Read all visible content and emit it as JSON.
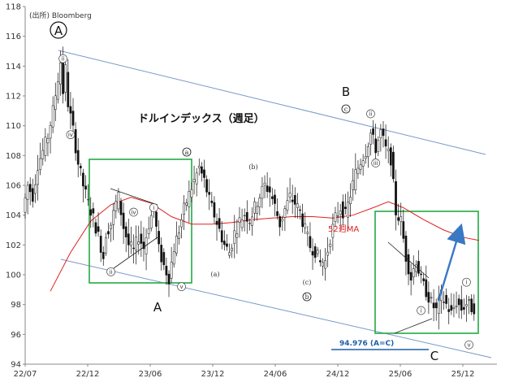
{
  "chart_data": {
    "type": "candlestick",
    "source": "(出所) Bloomberg",
    "title": "ドルインデックス（週足）",
    "ylim": [
      94,
      118
    ],
    "yticks": [
      94,
      96,
      98,
      100,
      102,
      104,
      106,
      108,
      110,
      112,
      114,
      116,
      118
    ],
    "xlim": [
      "2022-07",
      "2025-12"
    ],
    "xticks": [
      "22/07",
      "22/12",
      "23/06",
      "23/12",
      "24/06",
      "24/12",
      "25/06",
      "25/12"
    ],
    "grid": false,
    "ma_label": "52週MA",
    "target_label": "94.976 (A=C)",
    "target_value": 94.976,
    "major_labels": {
      "A_circled": "A",
      "A": "A",
      "B": "B",
      "C": "C"
    },
    "sub_labels": {
      "a_circled": "a",
      "b_circled": "b",
      "c_circled": "c",
      "a_paren": "(a)",
      "b_paren": "(b)",
      "c_paren": "(c)"
    },
    "wave_marks": [
      "ii",
      "iv",
      "i",
      "iii",
      "v"
    ],
    "price_path": [
      {
        "t": 0,
        "v": 104.2
      },
      {
        "t": 2,
        "v": 106.0
      },
      {
        "t": 4,
        "v": 105.3
      },
      {
        "t": 6,
        "v": 107.4
      },
      {
        "t": 8,
        "v": 108.3
      },
      {
        "t": 10,
        "v": 109.3
      },
      {
        "t": 12,
        "v": 111.0
      },
      {
        "t": 14,
        "v": 113.2
      },
      {
        "t": 15,
        "v": 114.3
      },
      {
        "t": 16,
        "v": 112.3
      },
      {
        "t": 17,
        "v": 113.8
      },
      {
        "t": 18,
        "v": 111.5
      },
      {
        "t": 20,
        "v": 109.7
      },
      {
        "t": 22,
        "v": 107.5
      },
      {
        "t": 24,
        "v": 106.0
      },
      {
        "t": 26,
        "v": 104.8
      },
      {
        "t": 28,
        "v": 103.8
      },
      {
        "t": 30,
        "v": 102.6
      },
      {
        "t": 32,
        "v": 101.2
      },
      {
        "t": 33,
        "v": 102.8
      },
      {
        "t": 35,
        "v": 103.4
      },
      {
        "t": 37,
        "v": 104.8
      },
      {
        "t": 38,
        "v": 105.2
      },
      {
        "t": 40,
        "v": 103.2
      },
      {
        "t": 42,
        "v": 102.0
      },
      {
        "t": 44,
        "v": 101.6
      },
      {
        "t": 46,
        "v": 102.6
      },
      {
        "t": 48,
        "v": 101.8
      },
      {
        "t": 50,
        "v": 103.4
      },
      {
        "t": 52,
        "v": 104.5
      },
      {
        "t": 54,
        "v": 101.7
      },
      {
        "t": 56,
        "v": 100.6
      },
      {
        "t": 58,
        "v": 99.8
      },
      {
        "t": 60,
        "v": 101.8
      },
      {
        "t": 62,
        "v": 103.0
      },
      {
        "t": 64,
        "v": 104.4
      },
      {
        "t": 66,
        "v": 105.4
      },
      {
        "t": 68,
        "v": 106.3
      },
      {
        "t": 70,
        "v": 107.2
      },
      {
        "t": 72,
        "v": 106.3
      },
      {
        "t": 74,
        "v": 105.0
      },
      {
        "t": 76,
        "v": 104.0
      },
      {
        "t": 78,
        "v": 103.0
      },
      {
        "t": 80,
        "v": 102.0
      },
      {
        "t": 82,
        "v": 101.5
      },
      {
        "t": 84,
        "v": 102.8
      },
      {
        "t": 86,
        "v": 103.6
      },
      {
        "t": 88,
        "v": 104.1
      },
      {
        "t": 90,
        "v": 103.7
      },
      {
        "t": 92,
        "v": 104.5
      },
      {
        "t": 94,
        "v": 105.3
      },
      {
        "t": 96,
        "v": 106.0
      },
      {
        "t": 98,
        "v": 105.6
      },
      {
        "t": 100,
        "v": 104.6
      },
      {
        "t": 102,
        "v": 103.4
      },
      {
        "t": 104,
        "v": 104.4
      },
      {
        "t": 106,
        "v": 105.2
      },
      {
        "t": 108,
        "v": 104.8
      },
      {
        "t": 110,
        "v": 104.2
      },
      {
        "t": 112,
        "v": 103.0
      },
      {
        "t": 114,
        "v": 101.9
      },
      {
        "t": 116,
        "v": 101.6
      },
      {
        "t": 118,
        "v": 100.8
      },
      {
        "t": 120,
        "v": 100.9
      },
      {
        "t": 122,
        "v": 102.5
      },
      {
        "t": 124,
        "v": 103.8
      },
      {
        "t": 126,
        "v": 104.5
      },
      {
        "t": 128,
        "v": 104.0
      },
      {
        "t": 130,
        "v": 105.4
      },
      {
        "t": 132,
        "v": 106.8
      },
      {
        "t": 134,
        "v": 107.6
      },
      {
        "t": 136,
        "v": 108.3
      },
      {
        "t": 138,
        "v": 109.5
      },
      {
        "t": 140,
        "v": 108.5
      },
      {
        "t": 142,
        "v": 109.6
      },
      {
        "t": 144,
        "v": 108.4
      },
      {
        "t": 146,
        "v": 107.8
      },
      {
        "t": 148,
        "v": 104.2
      },
      {
        "t": 150,
        "v": 103.6
      },
      {
        "t": 152,
        "v": 101.2
      },
      {
        "t": 154,
        "v": 99.8
      },
      {
        "t": 156,
        "v": 101.0
      },
      {
        "t": 158,
        "v": 99.6
      },
      {
        "t": 160,
        "v": 98.9
      },
      {
        "t": 162,
        "v": 98.1
      },
      {
        "t": 164,
        "v": 97.6
      },
      {
        "t": 166,
        "v": 98.6
      },
      {
        "t": 168,
        "v": 98.0
      },
      {
        "t": 170,
        "v": 97.4
      },
      {
        "t": 172,
        "v": 98.2
      },
      {
        "t": 174,
        "v": 97.7
      },
      {
        "t": 176,
        "v": 98.1
      },
      {
        "t": 178,
        "v": 97.8
      }
    ],
    "ma_path": [
      {
        "t": 10,
        "v": 98.9
      },
      {
        "t": 18,
        "v": 101.5
      },
      {
        "t": 26,
        "v": 103.6
      },
      {
        "t": 34,
        "v": 104.7
      },
      {
        "t": 42,
        "v": 105.2
      },
      {
        "t": 50,
        "v": 104.8
      },
      {
        "t": 58,
        "v": 103.9
      },
      {
        "t": 66,
        "v": 103.4
      },
      {
        "t": 74,
        "v": 103.4
      },
      {
        "t": 82,
        "v": 103.5
      },
      {
        "t": 90,
        "v": 103.7
      },
      {
        "t": 98,
        "v": 103.8
      },
      {
        "t": 106,
        "v": 103.9
      },
      {
        "t": 114,
        "v": 103.9
      },
      {
        "t": 122,
        "v": 103.8
      },
      {
        "t": 130,
        "v": 104.0
      },
      {
        "t": 138,
        "v": 104.5
      },
      {
        "t": 144,
        "v": 104.9
      },
      {
        "t": 150,
        "v": 104.5
      },
      {
        "t": 158,
        "v": 103.7
      },
      {
        "t": 166,
        "v": 103.0
      },
      {
        "t": 174,
        "v": 102.5
      },
      {
        "t": 180,
        "v": 102.3
      }
    ],
    "colors": {
      "candle": "#111111",
      "ma": "#e02020",
      "channel": "#7a98c8",
      "box": "#22aa44",
      "arrow": "#3a78c4",
      "target": "#1f5fa8"
    }
  }
}
